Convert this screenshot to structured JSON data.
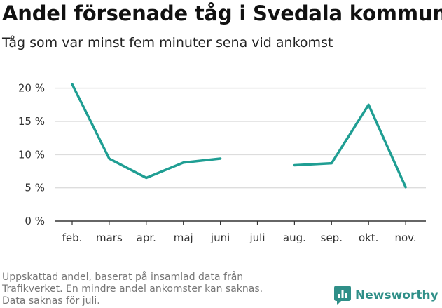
{
  "header": {
    "title": "Andel försenade tåg i Svedala kommun",
    "subtitle": "Tåg som var minst fem minuter sena vid ankomst"
  },
  "footer": {
    "note_lines": [
      "Uppskattad andel, baserat på insamlad data från",
      "Trafikverket. En mindre andel ankomster kan saknas.",
      "Data saknas för juli."
    ],
    "brand_name": "Newsworthy",
    "brand_icon": "newsworthy-logo-icon",
    "brand_color": "#2f8f88"
  },
  "chart_data": {
    "type": "line",
    "title": "Andel försenade tåg i Svedala kommun",
    "subtitle": "Tåg som var minst fem minuter sena vid ankomst",
    "xlabel": "",
    "ylabel": "",
    "categories": [
      "feb.",
      "mars",
      "apr.",
      "maj",
      "juni",
      "juli",
      "aug.",
      "sep.",
      "okt.",
      "nov."
    ],
    "series": [
      {
        "color": "#1f9e93",
        "values": [
          20.6,
          9.4,
          6.5,
          8.8,
          9.4,
          null,
          8.4,
          8.7,
          17.5,
          5.1
        ]
      }
    ],
    "yticks": [
      0,
      5,
      10,
      15,
      20
    ],
    "ytick_labels": [
      "0 %",
      "5 %",
      "10 %",
      "15 %",
      "20 %"
    ],
    "ylim": [
      0,
      20.6
    ],
    "grid": true,
    "gridline_color": "#dddddd",
    "axis_color": "#333333"
  }
}
